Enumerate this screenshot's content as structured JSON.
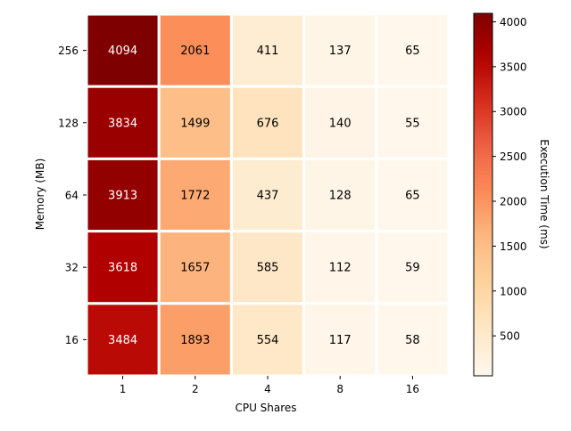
{
  "chart_data": {
    "type": "heatmap",
    "xlabel": "CPU Shares",
    "ylabel": "Memory (MB)",
    "x_categories": [
      "1",
      "2",
      "4",
      "8",
      "16"
    ],
    "y_categories": [
      "256",
      "128",
      "64",
      "32",
      "16"
    ],
    "values": [
      [
        4094,
        2061,
        411,
        137,
        65
      ],
      [
        3834,
        1499,
        676,
        140,
        55
      ],
      [
        3913,
        1772,
        437,
        128,
        65
      ],
      [
        3618,
        1657,
        585,
        112,
        59
      ],
      [
        3484,
        1893,
        554,
        117,
        58
      ]
    ],
    "colorbar": {
      "label": "Execution Time (ms)",
      "range": [
        55,
        4094
      ],
      "ticks": [
        500,
        1000,
        1500,
        2000,
        2500,
        3000,
        3500,
        4000
      ],
      "colormap": "OrRd",
      "low_color": "#fff7ec",
      "high_color": "#7f0000"
    },
    "annotation_colors": {
      "dark_text": "#000000",
      "light_text": "#ffffff"
    }
  }
}
